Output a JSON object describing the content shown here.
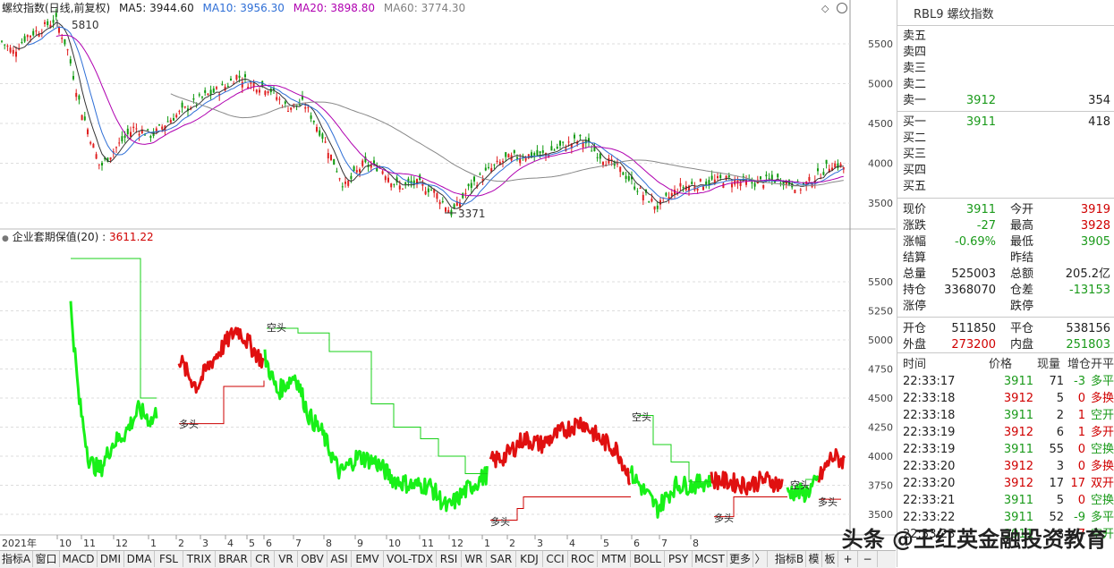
{
  "main_chart": {
    "title": "螺纹指数(日线,前复权)",
    "ma": [
      {
        "label": "MA5:",
        "value": "3944.60",
        "color": "#222222"
      },
      {
        "label": "MA10:",
        "value": "3956.30",
        "color": "#2f6fd6"
      },
      {
        "label": "MA20:",
        "value": "3898.80",
        "color": "#b000b0"
      },
      {
        "label": "MA60:",
        "value": "3774.30",
        "color": "#808080"
      }
    ],
    "high_label": "5810",
    "low_label": "3371",
    "y_ticks": [
      "5500",
      "5000",
      "4500",
      "4000",
      "3500"
    ]
  },
  "indicator_chart": {
    "title": "企业套期保值(20)",
    "value": "3611.22",
    "y_ticks": [
      "5500",
      "5250",
      "5000",
      "4750",
      "4500",
      "4250",
      "4000",
      "3750",
      "3500"
    ],
    "labels": {
      "kong1": "空头",
      "kong2": "空头",
      "kong3": "空头",
      "duo1": "多头",
      "duo2": "多头",
      "duo3": "多头",
      "duo4": "多头"
    }
  },
  "x_axis": {
    "year": "2021年",
    "months": [
      "10",
      "11",
      "12",
      "1",
      "2",
      "3",
      "4",
      "5",
      "6",
      "7",
      "8",
      "9",
      "10",
      "11",
      "12",
      "1",
      "2",
      "3",
      "4",
      "5",
      "6",
      "7",
      "8"
    ]
  },
  "chart_data": {
    "type": "line",
    "title": "螺纹指数(日线,前复权)",
    "xlabel": "",
    "ylabel": "",
    "ylim": [
      3300,
      5800
    ],
    "x": [
      "2021-10",
      "2021-11",
      "2021-12",
      "2022-01",
      "2022-02",
      "2022-03",
      "2022-04",
      "2022-05",
      "2022-06",
      "2022-07",
      "2022-08",
      "2022-09",
      "2022-10",
      "2022-11",
      "2022-12",
      "2023-01",
      "2023-02",
      "2023-03",
      "2023-04",
      "2023-05",
      "2023-06",
      "2023-07",
      "2023-08"
    ],
    "series": [
      {
        "name": "螺纹指数",
        "values": [
          5700,
          5000,
          4150,
          4700,
          4700,
          4900,
          5050,
          4700,
          4600,
          3900,
          4150,
          3800,
          3800,
          3500,
          3750,
          4050,
          4150,
          4250,
          3900,
          3650,
          3750,
          3750,
          3980
        ]
      },
      {
        "name": "企业套期保值(20)",
        "values": [
          5300,
          4000,
          4200,
          4500,
          4900,
          5100,
          5000,
          4450,
          4350,
          3800,
          4050,
          3800,
          3750,
          3600,
          3850,
          4050,
          4050,
          4300,
          3900,
          3700,
          3800,
          3800,
          3611.22
        ]
      }
    ],
    "annotations": [
      "5810",
      "3371"
    ],
    "grid": true,
    "legend": "top-left"
  },
  "panel": {
    "title": "RBL9 螺纹指数",
    "sell": [
      {
        "label": "卖五",
        "price": "",
        "vol": ""
      },
      {
        "label": "卖四",
        "price": "",
        "vol": ""
      },
      {
        "label": "卖三",
        "price": "",
        "vol": ""
      },
      {
        "label": "卖二",
        "price": "",
        "vol": ""
      },
      {
        "label": "卖一",
        "price": "3912",
        "vol": "354"
      }
    ],
    "buy": [
      {
        "label": "买一",
        "price": "3911",
        "vol": "418"
      },
      {
        "label": "买二",
        "price": "",
        "vol": ""
      },
      {
        "label": "买三",
        "price": "",
        "vol": ""
      },
      {
        "label": "买四",
        "price": "",
        "vol": ""
      },
      {
        "label": "买五",
        "price": "",
        "vol": ""
      }
    ],
    "stats": [
      {
        "l1": "现价",
        "v1": "3911",
        "l2": "今开",
        "v2": "3919"
      },
      {
        "l1": "涨跌",
        "v1": "-27",
        "l2": "最高",
        "v2": "3928"
      },
      {
        "l1": "涨幅",
        "v1": "-0.69%",
        "l2": "最低",
        "v2": "3905"
      },
      {
        "l1": "结算",
        "v1": "",
        "l2": "昨结",
        "v2": ""
      },
      {
        "l1": "总量",
        "v1": "525003",
        "l2": "总额",
        "v2": "205.2亿"
      },
      {
        "l1": "持仓",
        "v1": "3368070",
        "l2": "仓差",
        "v2": "-13153"
      },
      {
        "l1": "涨停",
        "v1": "",
        "l2": "跌停",
        "v2": ""
      }
    ],
    "flow": [
      {
        "l1": "开仓",
        "v1": "511850",
        "l2": "平仓",
        "v2": "538156"
      },
      {
        "l1": "外盘",
        "v1": "273200",
        "l2": "内盘",
        "v2": "251803"
      }
    ],
    "trade_headers": [
      "时间",
      "价格",
      "现量",
      "增仓",
      "开平"
    ],
    "trades": [
      {
        "time": "22:33:17",
        "price": "3911",
        "vol": "71",
        "chg": "-3",
        "type": "多平"
      },
      {
        "time": "22:33:18",
        "price": "3912",
        "vol": "5",
        "chg": "0",
        "type": "多换"
      },
      {
        "time": "22:33:18",
        "price": "3911",
        "vol": "2",
        "chg": "1",
        "type": "空开"
      },
      {
        "time": "22:33:19",
        "price": "3912",
        "vol": "6",
        "chg": "1",
        "type": "多开"
      },
      {
        "time": "22:33:19",
        "price": "3911",
        "vol": "55",
        "chg": "0",
        "type": "空换"
      },
      {
        "time": "22:33:20",
        "price": "3912",
        "vol": "3",
        "chg": "0",
        "type": "多换"
      },
      {
        "time": "22:33:20",
        "price": "3912",
        "vol": "17",
        "chg": "17",
        "type": "双开"
      },
      {
        "time": "22:33:21",
        "price": "3911",
        "vol": "5",
        "chg": "0",
        "type": "空换"
      },
      {
        "time": "22:33:22",
        "price": "3911",
        "vol": "52",
        "chg": "-9",
        "type": "多平"
      },
      {
        "time": "22:33:23",
        "price": "3911",
        "vol": "8",
        "chg": "7",
        "type": "空开"
      }
    ]
  },
  "tabs": [
    "指标A",
    "窗口",
    "MACD",
    "DMI",
    "DMA",
    "FSL",
    "TRIX",
    "BRAR",
    "CR",
    "VR",
    "OBV",
    "ASI",
    "EMV",
    "VOL-TDX",
    "RSI",
    "WR",
    "SAR",
    "KDJ",
    "CCI",
    "ROC",
    "MTM",
    "BOLL",
    "PSY",
    "MCST",
    "更多",
    "〉",
    "指标B",
    "模",
    "板",
    "+",
    "−"
  ],
  "watermark": "头条 @王红英金融投资教育"
}
